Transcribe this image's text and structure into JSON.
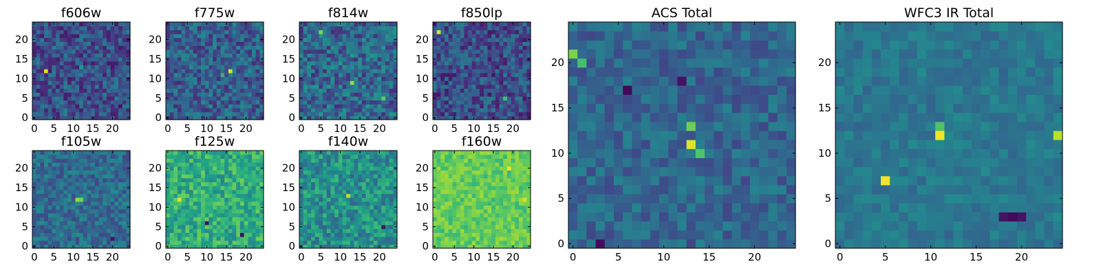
{
  "chart_data": {
    "type": "heatmap",
    "colormap": "viridis",
    "grid": false,
    "panels": [
      {
        "id": "f606w",
        "title": "f606w",
        "size": 25,
        "xticks": [
          0,
          5,
          10,
          15,
          20
        ],
        "yticks": [
          0,
          5,
          10,
          15,
          20
        ],
        "vmin": 0,
        "vmax": 1,
        "background_level": 0.25,
        "noise": 0.18,
        "seed": 11,
        "hotspots": [
          {
            "x": 3,
            "y": 12,
            "v": 0.95
          },
          {
            "x": 12,
            "y": 13,
            "v": 0.55
          },
          {
            "x": 22,
            "y": 3,
            "v": 0.05
          }
        ]
      },
      {
        "id": "f775w",
        "title": "f775w",
        "size": 25,
        "xticks": [
          0,
          5,
          10,
          15,
          20
        ],
        "yticks": [
          0,
          5,
          10,
          15,
          20
        ],
        "vmin": 0,
        "vmax": 1,
        "background_level": 0.3,
        "noise": 0.18,
        "seed": 23,
        "hotspots": [
          {
            "x": 16,
            "y": 12,
            "v": 0.95
          },
          {
            "x": 14,
            "y": 11,
            "v": 0.65
          }
        ]
      },
      {
        "id": "f814w",
        "title": "f814w",
        "size": 25,
        "xticks": [
          0,
          5,
          10,
          15,
          20
        ],
        "yticks": [
          0,
          5,
          10,
          15,
          20
        ],
        "vmin": 0,
        "vmax": 1,
        "background_level": 0.33,
        "noise": 0.2,
        "seed": 37,
        "hotspots": [
          {
            "x": 5,
            "y": 22,
            "v": 0.8
          },
          {
            "x": 13,
            "y": 9,
            "v": 0.85
          },
          {
            "x": 21,
            "y": 5,
            "v": 0.75
          }
        ]
      },
      {
        "id": "f850lp",
        "title": "f850lp",
        "size": 25,
        "xticks": [
          0,
          5,
          10,
          15,
          20
        ],
        "yticks": [
          0,
          5,
          10,
          15,
          20
        ],
        "vmin": 0,
        "vmax": 1,
        "background_level": 0.24,
        "noise": 0.18,
        "seed": 41,
        "hotspots": [
          {
            "x": 1,
            "y": 22,
            "v": 0.95
          },
          {
            "x": 18,
            "y": 5,
            "v": 0.7
          }
        ]
      },
      {
        "id": "f105w",
        "title": "f105w",
        "size": 25,
        "xticks": [
          0,
          5,
          10,
          15,
          20
        ],
        "yticks": [
          0,
          5,
          10,
          15,
          20
        ],
        "vmin": 0,
        "vmax": 1,
        "background_level": 0.35,
        "noise": 0.14,
        "seed": 53,
        "hotspots": [
          {
            "x": 11,
            "y": 12,
            "v": 0.85
          },
          {
            "x": 12,
            "y": 12,
            "v": 0.8
          },
          {
            "x": 20,
            "y": 2,
            "v": 0.05
          }
        ]
      },
      {
        "id": "f125w",
        "title": "f125w",
        "size": 25,
        "xticks": [
          0,
          5,
          10,
          15,
          20
        ],
        "yticks": [
          0,
          5,
          10,
          15,
          20
        ],
        "vmin": 0,
        "vmax": 1,
        "background_level": 0.62,
        "noise": 0.16,
        "seed": 67,
        "hotspots": [
          {
            "x": 19,
            "y": 3,
            "v": 0.02
          },
          {
            "x": 10,
            "y": 6,
            "v": 0.05
          },
          {
            "x": 3,
            "y": 12,
            "v": 0.95
          }
        ]
      },
      {
        "id": "f140w",
        "title": "f140w",
        "size": 25,
        "xticks": [
          0,
          5,
          10,
          15,
          20
        ],
        "yticks": [
          0,
          5,
          10,
          15,
          20
        ],
        "vmin": 0,
        "vmax": 1,
        "background_level": 0.5,
        "noise": 0.18,
        "seed": 79,
        "hotspots": [
          {
            "x": 12,
            "y": 13,
            "v": 0.9
          },
          {
            "x": 21,
            "y": 5,
            "v": 0.05
          }
        ]
      },
      {
        "id": "f160w",
        "title": "f160w",
        "size": 25,
        "xticks": [
          0,
          5,
          10,
          15,
          20
        ],
        "yticks": [
          0,
          5,
          10,
          15,
          20
        ],
        "vmin": 0,
        "vmax": 1,
        "background_level": 0.76,
        "noise": 0.1,
        "seed": 83,
        "hotspots": [
          {
            "x": 19,
            "y": 20,
            "v": 0.98
          },
          {
            "x": 23,
            "y": 12,
            "v": 0.95
          }
        ]
      },
      {
        "id": "acs_total",
        "title": "ACS Total",
        "size": 25,
        "xticks": [
          0,
          5,
          10,
          15,
          20
        ],
        "yticks": [
          0,
          5,
          10,
          15,
          20
        ],
        "vmin": 0,
        "vmax": 1,
        "background_level": 0.33,
        "noise": 0.12,
        "seed": 97,
        "hotspots": [
          {
            "x": 13,
            "y": 11,
            "v": 0.95
          },
          {
            "x": 13,
            "y": 13,
            "v": 0.78
          },
          {
            "x": 14,
            "y": 10,
            "v": 0.72
          },
          {
            "x": 0,
            "y": 21,
            "v": 0.8
          },
          {
            "x": 1,
            "y": 20,
            "v": 0.7
          },
          {
            "x": 6,
            "y": 17,
            "v": 0.02
          },
          {
            "x": 12,
            "y": 18,
            "v": 0.05
          },
          {
            "x": 3,
            "y": 0,
            "v": 0.03
          }
        ]
      },
      {
        "id": "wfc3_ir_total",
        "title": "WFC3 IR Total",
        "size": 25,
        "xticks": [
          0,
          5,
          10,
          15,
          20
        ],
        "yticks": [
          0,
          5,
          10,
          15,
          20
        ],
        "vmin": 0,
        "vmax": 1,
        "background_level": 0.4,
        "noise": 0.08,
        "seed": 101,
        "hotspots": [
          {
            "x": 11,
            "y": 12,
            "v": 0.98
          },
          {
            "x": 11,
            "y": 13,
            "v": 0.72
          },
          {
            "x": 5,
            "y": 7,
            "v": 0.98
          },
          {
            "x": 24,
            "y": 12,
            "v": 0.9
          },
          {
            "x": 19,
            "y": 3,
            "v": 0.02
          },
          {
            "x": 18,
            "y": 3,
            "v": 0.05
          },
          {
            "x": 20,
            "y": 3,
            "v": 0.05
          }
        ]
      }
    ]
  }
}
